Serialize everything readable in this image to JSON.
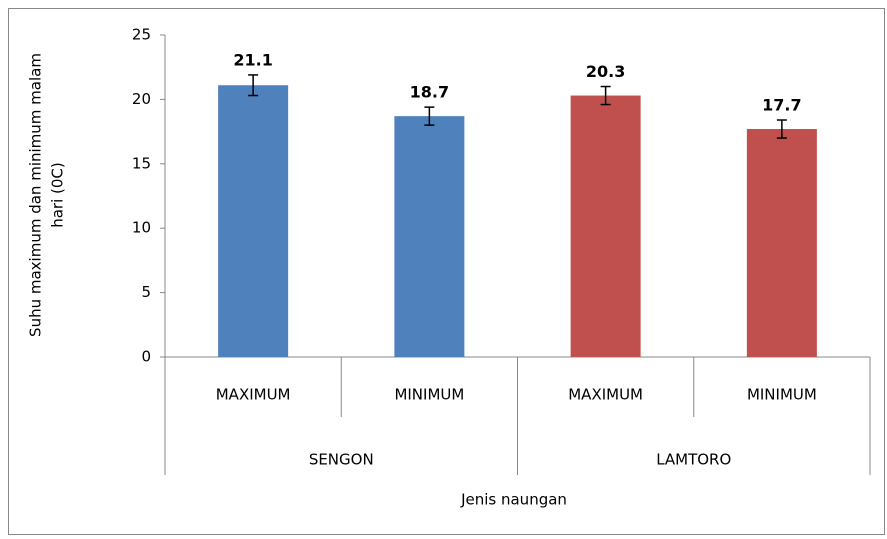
{
  "chart_data": {
    "type": "bar",
    "ylabel": [
      "Suhu maximum dan minimum malam",
      "hari (0C)"
    ],
    "xlabel": "Jenis naungan",
    "categories": [
      "MAXIMUM",
      "MINIMUM",
      "MAXIMUM",
      "MINIMUM"
    ],
    "groups": [
      "SENGON",
      "LAMTORO"
    ],
    "values": [
      21.1,
      18.7,
      20.3,
      17.7
    ],
    "errors": [
      0.8,
      0.7,
      0.7,
      0.7
    ],
    "colors": [
      "#4f81bd",
      "#4f81bd",
      "#c0504d",
      "#c0504d"
    ],
    "ylim": [
      0,
      25
    ],
    "yticks": [
      0,
      5,
      10,
      15,
      20,
      25
    ],
    "grid": false
  }
}
